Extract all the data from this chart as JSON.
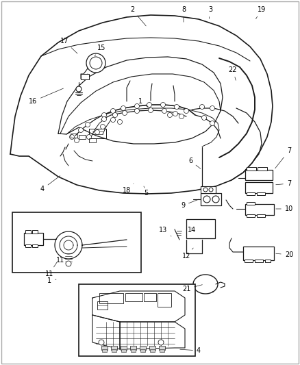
{
  "bg_color": "#ffffff",
  "line_color": "#1a1a1a",
  "label_color": "#000000",
  "figsize": [
    4.38,
    5.33
  ],
  "dpi": 100,
  "labels": {
    "1": [
      0.37,
      0.555,
      0.42,
      0.56
    ],
    "2": [
      0.42,
      0.975,
      0.46,
      0.94
    ],
    "3": [
      0.67,
      0.975,
      0.67,
      0.945
    ],
    "4": [
      0.185,
      0.445,
      0.22,
      0.47
    ],
    "5": [
      0.435,
      0.445,
      0.44,
      0.475
    ],
    "6": [
      0.62,
      0.475,
      0.62,
      0.51
    ],
    "7a": [
      0.92,
      0.54,
      0.88,
      0.54
    ],
    "7b": [
      0.92,
      0.485,
      0.88,
      0.485
    ],
    "8": [
      0.6,
      0.975,
      0.62,
      0.945
    ],
    "9": [
      0.59,
      0.49,
      0.585,
      0.52
    ],
    "10": [
      0.935,
      0.455,
      0.895,
      0.455
    ],
    "11": [
      0.085,
      0.385,
      0.1,
      0.41
    ],
    "12": [
      0.565,
      0.345,
      0.575,
      0.38
    ],
    "13": [
      0.505,
      0.375,
      0.52,
      0.395
    ],
    "14": [
      0.6,
      0.375,
      0.59,
      0.395
    ],
    "15": [
      0.275,
      0.82,
      0.275,
      0.8
    ],
    "16": [
      0.09,
      0.795,
      0.145,
      0.775
    ],
    "17": [
      0.185,
      0.855,
      0.21,
      0.835
    ],
    "18": [
      0.38,
      0.445,
      0.385,
      0.48
    ],
    "19": [
      0.865,
      0.975,
      0.84,
      0.945
    ],
    "20": [
      0.875,
      0.36,
      0.875,
      0.39
    ],
    "21": [
      0.565,
      0.295,
      0.575,
      0.325
    ],
    "22": [
      0.75,
      0.835,
      0.745,
      0.84
    ]
  }
}
